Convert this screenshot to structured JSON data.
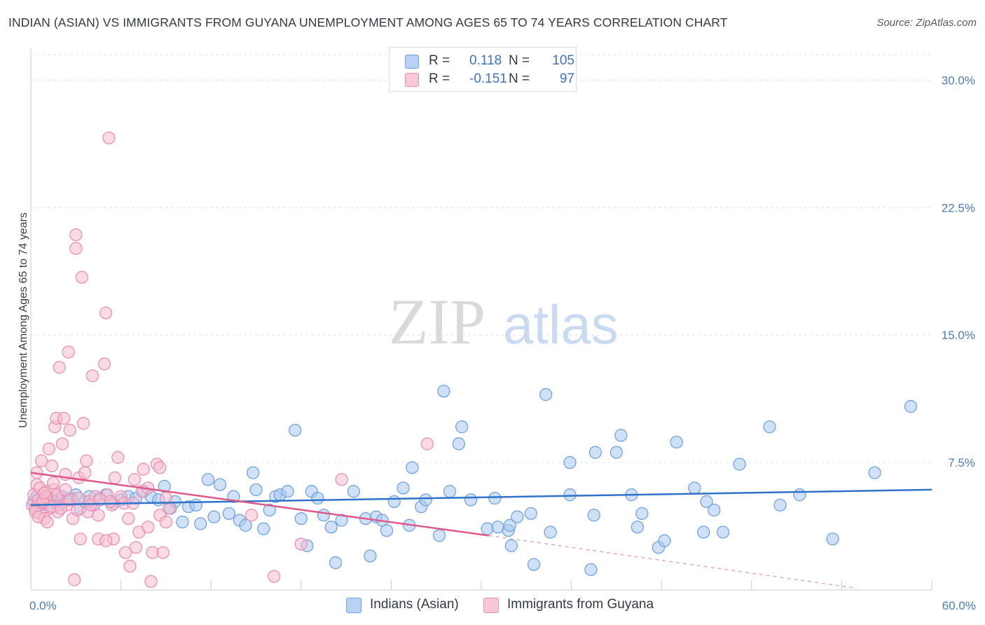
{
  "title": "INDIAN (ASIAN) VS IMMIGRANTS FROM GUYANA UNEMPLOYMENT AMONG AGES 65 TO 74 YEARS CORRELATION CHART",
  "source": "Source: ZipAtlas.com",
  "watermark": {
    "zip": "ZIP",
    "atlas": "atlas"
  },
  "legend": {
    "rows": [
      {
        "r_label": "R =",
        "r_value": "0.118",
        "n_label": "N =",
        "n_value": "105"
      },
      {
        "r_label": "R =",
        "r_value": "-0.151",
        "n_label": "N =",
        "n_value": "97"
      }
    ]
  },
  "chart_data": {
    "type": "scatter",
    "title": "INDIAN (ASIAN) VS IMMIGRANTS FROM GUYANA UNEMPLOYMENT AMONG AGES 65 TO 74 YEARS CORRELATION CHART",
    "xlabel": "",
    "ylabel": "Unemployment Among Ages 65 to 74 years",
    "xlim": [
      0,
      60
    ],
    "ylim": [
      0,
      31.5
    ],
    "x_tick_labels": [
      "0.0%",
      "60.0%"
    ],
    "y_ticks": [
      7.5,
      15.0,
      22.5,
      30.0
    ],
    "y_tick_labels": [
      "7.5%",
      "15.0%",
      "22.5%",
      "30.0%"
    ],
    "grid": true,
    "legend_position": "top-center",
    "series": [
      {
        "name": "Indians (Asian)",
        "color": "#6fa3e6",
        "fill": "#a9c8f0",
        "trend": {
          "x": [
            0,
            60
          ],
          "y": [
            5.0,
            5.9
          ]
        },
        "points": [
          [
            0.2,
            5.2
          ],
          [
            0.4,
            5.5
          ],
          [
            0.6,
            5.0
          ],
          [
            0.8,
            5.3
          ],
          [
            1.0,
            5.1
          ],
          [
            1.2,
            4.9
          ],
          [
            1.4,
            5.4
          ],
          [
            1.6,
            5.2
          ],
          [
            1.9,
            5.0
          ],
          [
            2.1,
            5.5
          ],
          [
            2.4,
            5.3
          ],
          [
            2.7,
            5.4
          ],
          [
            3.0,
            5.6
          ],
          [
            3.3,
            4.8
          ],
          [
            3.6,
            5.2
          ],
          [
            3.9,
            5.5
          ],
          [
            4.2,
            5.0
          ],
          [
            4.6,
            5.4
          ],
          [
            5.0,
            5.6
          ],
          [
            5.5,
            5.1
          ],
          [
            6.0,
            5.3
          ],
          [
            6.5,
            5.5
          ],
          [
            7.0,
            5.4
          ],
          [
            7.5,
            5.8
          ],
          [
            8.0,
            5.5
          ],
          [
            8.5,
            5.3
          ],
          [
            8.9,
            6.1
          ],
          [
            9.3,
            4.8
          ],
          [
            9.6,
            5.2
          ],
          [
            10.1,
            4.0
          ],
          [
            10.5,
            4.9
          ],
          [
            11.0,
            5.0
          ],
          [
            11.3,
            3.9
          ],
          [
            11.8,
            6.5
          ],
          [
            12.2,
            4.3
          ],
          [
            12.6,
            6.2
          ],
          [
            13.2,
            4.5
          ],
          [
            13.5,
            5.5
          ],
          [
            13.9,
            4.1
          ],
          [
            14.3,
            3.8
          ],
          [
            14.8,
            6.9
          ],
          [
            15.0,
            5.9
          ],
          [
            15.5,
            3.6
          ],
          [
            15.9,
            4.7
          ],
          [
            16.3,
            5.5
          ],
          [
            16.6,
            5.6
          ],
          [
            17.1,
            5.8
          ],
          [
            17.6,
            9.4
          ],
          [
            18.0,
            4.2
          ],
          [
            18.4,
            2.6
          ],
          [
            18.7,
            5.8
          ],
          [
            19.1,
            5.4
          ],
          [
            19.5,
            4.4
          ],
          [
            20.0,
            3.7
          ],
          [
            20.3,
            1.6
          ],
          [
            20.7,
            4.1
          ],
          [
            21.5,
            5.8
          ],
          [
            22.3,
            4.2
          ],
          [
            22.6,
            2.0
          ],
          [
            23.0,
            4.3
          ],
          [
            23.4,
            4.1
          ],
          [
            23.7,
            3.5
          ],
          [
            24.2,
            5.2
          ],
          [
            24.8,
            6.0
          ],
          [
            25.2,
            3.8
          ],
          [
            25.4,
            7.2
          ],
          [
            26.0,
            4.9
          ],
          [
            26.3,
            5.3
          ],
          [
            27.2,
            3.2
          ],
          [
            27.5,
            11.7
          ],
          [
            27.9,
            5.8
          ],
          [
            28.5,
            8.6
          ],
          [
            28.7,
            9.6
          ],
          [
            29.3,
            5.3
          ],
          [
            30.4,
            3.6
          ],
          [
            30.9,
            5.4
          ],
          [
            31.1,
            3.7
          ],
          [
            31.8,
            3.5
          ],
          [
            31.9,
            3.8
          ],
          [
            32.4,
            4.3
          ],
          [
            33.3,
            4.5
          ],
          [
            32.0,
            2.6
          ],
          [
            33.5,
            1.5
          ],
          [
            34.3,
            11.5
          ],
          [
            34.6,
            3.4
          ],
          [
            35.9,
            5.6
          ],
          [
            35.9,
            7.5
          ],
          [
            37.3,
            1.2
          ],
          [
            37.6,
            8.1
          ],
          [
            37.5,
            4.4
          ],
          [
            39.0,
            8.1
          ],
          [
            39.3,
            9.1
          ],
          [
            40.0,
            5.6
          ],
          [
            40.4,
            3.7
          ],
          [
            40.7,
            4.5
          ],
          [
            41.8,
            2.5
          ],
          [
            42.2,
            2.9
          ],
          [
            43.0,
            8.7
          ],
          [
            44.2,
            6.0
          ],
          [
            45.0,
            5.2
          ],
          [
            46.1,
            3.4
          ],
          [
            47.2,
            7.4
          ],
          [
            49.2,
            9.6
          ],
          [
            49.9,
            5.0
          ],
          [
            51.2,
            5.6
          ],
          [
            53.4,
            3.0
          ],
          [
            56.2,
            6.9
          ],
          [
            58.6,
            10.8
          ],
          [
            44.8,
            3.4
          ],
          [
            45.5,
            4.7
          ]
        ]
      },
      {
        "name": "Immigrants from Guyana",
        "color": "#ec8fb0",
        "fill": "#f5bdd0",
        "trend": {
          "x": [
            0,
            30.5
          ],
          "y": [
            6.9,
            3.2
          ]
        },
        "trend_extension": {
          "x": [
            30.5,
            55
          ],
          "y": [
            3.2,
            0.1
          ]
        },
        "points": [
          [
            0.1,
            5.0
          ],
          [
            0.2,
            5.6
          ],
          [
            0.3,
            4.8
          ],
          [
            0.4,
            6.2
          ],
          [
            0.5,
            5.3
          ],
          [
            0.6,
            4.5
          ],
          [
            0.7,
            7.6
          ],
          [
            0.8,
            5.1
          ],
          [
            0.9,
            4.2
          ],
          [
            1.0,
            5.8
          ],
          [
            1.1,
            5.4
          ],
          [
            1.2,
            8.3
          ],
          [
            1.3,
            4.8
          ],
          [
            1.4,
            7.3
          ],
          [
            1.5,
            5.9
          ],
          [
            1.6,
            9.6
          ],
          [
            1.7,
            10.1
          ],
          [
            1.8,
            4.6
          ],
          [
            1.9,
            13.1
          ],
          [
            2.0,
            5.2
          ],
          [
            2.1,
            8.6
          ],
          [
            2.2,
            10.1
          ],
          [
            2.3,
            6.8
          ],
          [
            2.4,
            5.0
          ],
          [
            2.5,
            14.0
          ],
          [
            2.6,
            9.4
          ],
          [
            2.8,
            4.2
          ],
          [
            3.0,
            20.9
          ],
          [
            3.1,
            4.7
          ],
          [
            3.2,
            6.6
          ],
          [
            3.4,
            18.4
          ],
          [
            3.5,
            9.8
          ],
          [
            3.7,
            7.6
          ],
          [
            3.9,
            5.2
          ],
          [
            4.1,
            12.6
          ],
          [
            4.3,
            5.5
          ],
          [
            4.5,
            4.4
          ],
          [
            4.9,
            13.3
          ],
          [
            5.1,
            5.6
          ],
          [
            5.4,
            5.0
          ],
          [
            5.5,
            3.0
          ],
          [
            5.8,
            7.8
          ],
          [
            6.0,
            5.5
          ],
          [
            6.3,
            2.2
          ],
          [
            6.5,
            4.2
          ],
          [
            6.9,
            6.5
          ],
          [
            7.2,
            3.4
          ],
          [
            7.5,
            7.1
          ],
          [
            7.8,
            3.7
          ],
          [
            8.1,
            2.2
          ],
          [
            8.4,
            7.4
          ],
          [
            8.6,
            4.4
          ],
          [
            8.8,
            2.2
          ],
          [
            9.0,
            4.0
          ],
          [
            9.2,
            4.8
          ],
          [
            5.0,
            16.3
          ],
          [
            3.0,
            20.1
          ],
          [
            5.2,
            26.6
          ],
          [
            1.4,
            4.9
          ],
          [
            2.0,
            4.8
          ],
          [
            2.9,
            0.6
          ],
          [
            3.3,
            3.0
          ],
          [
            3.8,
            4.6
          ],
          [
            4.5,
            3.0
          ],
          [
            5.0,
            2.9
          ],
          [
            5.6,
            6.6
          ],
          [
            6.2,
            5.1
          ],
          [
            6.6,
            1.4
          ],
          [
            7.0,
            2.5
          ],
          [
            7.4,
            5.8
          ],
          [
            8.0,
            0.5
          ],
          [
            8.6,
            7.2
          ],
          [
            14.7,
            4.4
          ],
          [
            16.2,
            0.8
          ],
          [
            18.0,
            2.7
          ],
          [
            20.7,
            6.5
          ],
          [
            26.4,
            8.6
          ],
          [
            1.0,
            5.5
          ],
          [
            0.6,
            6.0
          ],
          [
            0.4,
            6.9
          ],
          [
            1.8,
            5.6
          ],
          [
            2.6,
            5.3
          ],
          [
            3.6,
            6.9
          ],
          [
            4.0,
            5.0
          ],
          [
            4.6,
            5.3
          ],
          [
            5.3,
            5.2
          ],
          [
            6.8,
            5.1
          ],
          [
            7.8,
            6.0
          ],
          [
            9.0,
            5.4
          ],
          [
            0.3,
            4.6
          ],
          [
            0.5,
            4.3
          ],
          [
            0.8,
            5.2
          ],
          [
            1.1,
            4.0
          ],
          [
            1.5,
            6.3
          ],
          [
            2.3,
            5.9
          ],
          [
            3.2,
            5.4
          ],
          [
            0.9,
            5.7
          ]
        ]
      }
    ]
  }
}
